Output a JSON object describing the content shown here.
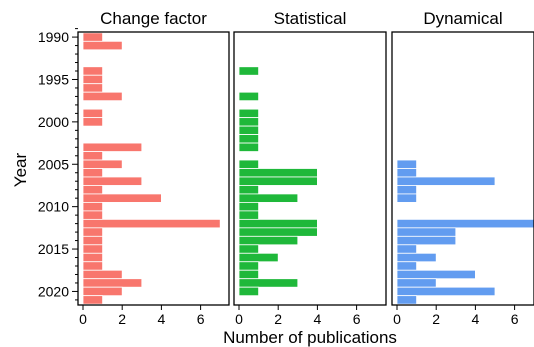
{
  "chart_data": {
    "type": "bar",
    "orientation": "horizontal",
    "ylabel": "Year",
    "xlabel": "Number of publications",
    "y_ticks": [
      1990,
      1995,
      2000,
      2005,
      2010,
      2015,
      2020
    ],
    "ylim": [
      1989,
      2021
    ],
    "xlim": [
      0,
      7
    ],
    "x_ticks": [
      0,
      2,
      4,
      6
    ],
    "legend": "none",
    "grid": false,
    "panels": [
      {
        "title": "Change factor",
        "color": "#f8766d",
        "bars": [
          {
            "year": 1990,
            "value": 1
          },
          {
            "year": 1991,
            "value": 2
          },
          {
            "year": 1994,
            "value": 1
          },
          {
            "year": 1995,
            "value": 1
          },
          {
            "year": 1996,
            "value": 1
          },
          {
            "year": 1997,
            "value": 2
          },
          {
            "year": 1999,
            "value": 1
          },
          {
            "year": 2000,
            "value": 1
          },
          {
            "year": 2003,
            "value": 3
          },
          {
            "year": 2004,
            "value": 1
          },
          {
            "year": 2005,
            "value": 2
          },
          {
            "year": 2006,
            "value": 1
          },
          {
            "year": 2007,
            "value": 3
          },
          {
            "year": 2008,
            "value": 1
          },
          {
            "year": 2009,
            "value": 4
          },
          {
            "year": 2010,
            "value": 1
          },
          {
            "year": 2011,
            "value": 1
          },
          {
            "year": 2012,
            "value": 7
          },
          {
            "year": 2013,
            "value": 1
          },
          {
            "year": 2014,
            "value": 1
          },
          {
            "year": 2015,
            "value": 1
          },
          {
            "year": 2016,
            "value": 1
          },
          {
            "year": 2017,
            "value": 1
          },
          {
            "year": 2018,
            "value": 2
          },
          {
            "year": 2019,
            "value": 3
          },
          {
            "year": 2020,
            "value": 2
          },
          {
            "year": 2021,
            "value": 1
          }
        ]
      },
      {
        "title": "Statistical",
        "color": "#1fb83a",
        "bars": [
          {
            "year": 1994,
            "value": 1
          },
          {
            "year": 1997,
            "value": 1
          },
          {
            "year": 1999,
            "value": 1
          },
          {
            "year": 2000,
            "value": 1
          },
          {
            "year": 2001,
            "value": 1
          },
          {
            "year": 2002,
            "value": 1
          },
          {
            "year": 2003,
            "value": 1
          },
          {
            "year": 2005,
            "value": 1
          },
          {
            "year": 2006,
            "value": 4
          },
          {
            "year": 2007,
            "value": 4
          },
          {
            "year": 2008,
            "value": 1
          },
          {
            "year": 2009,
            "value": 3
          },
          {
            "year": 2010,
            "value": 1
          },
          {
            "year": 2011,
            "value": 1
          },
          {
            "year": 2012,
            "value": 4
          },
          {
            "year": 2013,
            "value": 4
          },
          {
            "year": 2014,
            "value": 3
          },
          {
            "year": 2015,
            "value": 1
          },
          {
            "year": 2016,
            "value": 2
          },
          {
            "year": 2017,
            "value": 1
          },
          {
            "year": 2018,
            "value": 1
          },
          {
            "year": 2019,
            "value": 3
          },
          {
            "year": 2020,
            "value": 1
          }
        ]
      },
      {
        "title": "Dynamical",
        "color": "#629cf0",
        "bars": [
          {
            "year": 2005,
            "value": 1
          },
          {
            "year": 2006,
            "value": 1
          },
          {
            "year": 2007,
            "value": 5
          },
          {
            "year": 2008,
            "value": 1
          },
          {
            "year": 2009,
            "value": 1
          },
          {
            "year": 2012,
            "value": 7
          },
          {
            "year": 2013,
            "value": 3
          },
          {
            "year": 2014,
            "value": 3
          },
          {
            "year": 2015,
            "value": 1
          },
          {
            "year": 2016,
            "value": 2
          },
          {
            "year": 2017,
            "value": 1
          },
          {
            "year": 2018,
            "value": 4
          },
          {
            "year": 2019,
            "value": 2
          },
          {
            "year": 2020,
            "value": 5
          },
          {
            "year": 2021,
            "value": 1
          }
        ]
      }
    ]
  }
}
